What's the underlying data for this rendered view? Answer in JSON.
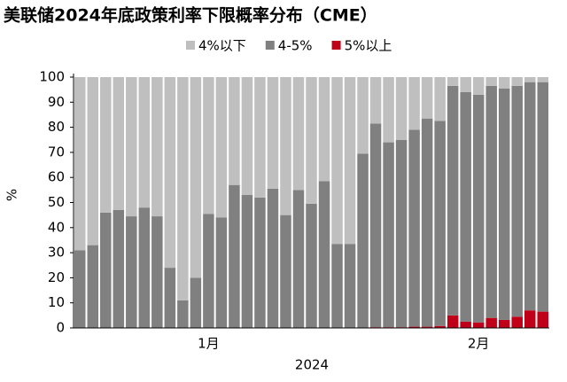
{
  "chart_data": {
    "type": "stacked_bar",
    "title": "美联储2024年底政策利率下限概率分布（CME）",
    "x_label": "2024",
    "y_label": "%",
    "categories": [
      null,
      null,
      null,
      null,
      null,
      null,
      null,
      null,
      null,
      null,
      null,
      null,
      null,
      null,
      null,
      null,
      null,
      null,
      null,
      null,
      null,
      null,
      null,
      null,
      null,
      null,
      null,
      null,
      null,
      null,
      null,
      null,
      null,
      null,
      null,
      null,
      null
    ],
    "xticks": [
      {
        "value": 10,
        "label": "1月"
      },
      {
        "value": 31,
        "label": "2月"
      }
    ],
    "series": [
      {
        "name": "5%以上",
        "color": "#c00018",
        "values": [
          0,
          0,
          0,
          0,
          0,
          0,
          0,
          0,
          0,
          0,
          0,
          0,
          0,
          0,
          0,
          0,
          0,
          0,
          0,
          0,
          0,
          0,
          0,
          0.3,
          0.3,
          0.3,
          0.5,
          0.5,
          0.8,
          5,
          2.5,
          2.2,
          4,
          3.2,
          4.5,
          7,
          6.5
        ]
      },
      {
        "name": "4-5%",
        "color": "#808080",
        "values": [
          31,
          33,
          46,
          47,
          44.5,
          48,
          44.5,
          24,
          11,
          20,
          45.5,
          44,
          57,
          53,
          52,
          55.5,
          45,
          55,
          49.5,
          58.5,
          33.5,
          33.5,
          69.5,
          81.2,
          73.7,
          74.7,
          78.5,
          83,
          81.7,
          91.5,
          91.5,
          90.8,
          92.5,
          92.3,
          92,
          91,
          91.5
        ]
      },
      {
        "name": "4%以下",
        "color": "#bfbfbf",
        "values": [
          69,
          67,
          54,
          53,
          55.5,
          52,
          55.5,
          76,
          89,
          80,
          54.5,
          56,
          43,
          47,
          48,
          44.5,
          55,
          45,
          50.5,
          41.5,
          66.5,
          66.5,
          30.5,
          18.5,
          26,
          25,
          21,
          16.5,
          17.5,
          3.5,
          6,
          7,
          3.5,
          4.5,
          3.5,
          2,
          2
        ]
      }
    ],
    "legend_order": [
      "4%以下",
      "4-5%",
      "5%以上"
    ],
    "ylim": [
      0,
      100
    ],
    "yticks": [
      0,
      10,
      20,
      30,
      40,
      50,
      60,
      70,
      80,
      90,
      100
    ]
  }
}
